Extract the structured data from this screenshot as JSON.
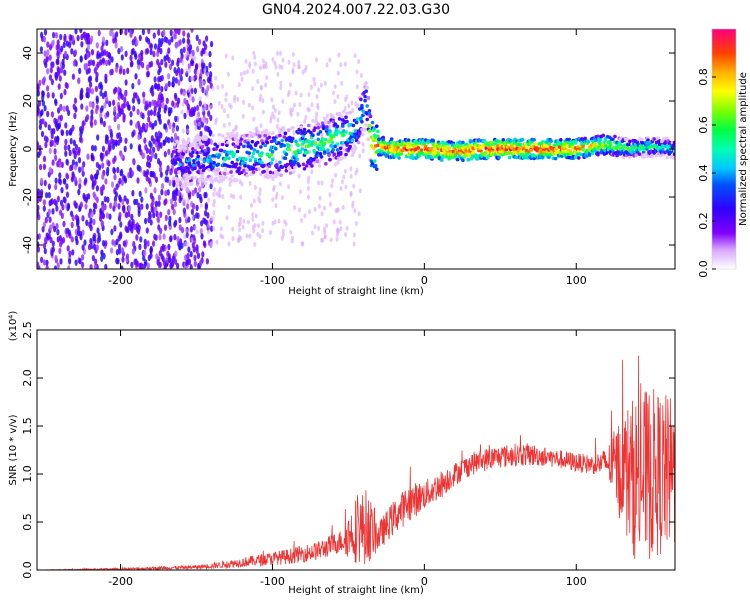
{
  "figure": {
    "title": "GN04.2024.007.22.03.G30"
  },
  "chart_data": [
    {
      "type": "heatmap",
      "name": "spectrogram",
      "xlabel": "Height of straight line (km)",
      "ylabel": "Frequency (Hz)",
      "xlim": [
        -255,
        165
      ],
      "ylim": [
        -50,
        50
      ],
      "xticks": [
        -200,
        -100,
        0,
        100
      ],
      "yticks": [
        -40,
        -20,
        0,
        20,
        40
      ],
      "colorbar": {
        "label": "Normalized spectral amplitude",
        "ticks": [
          "0.0",
          "0.2",
          "0.4",
          "0.6",
          "0.8"
        ],
        "range": [
          0,
          1
        ],
        "colors": [
          "#ffffff",
          "#d9a6ff",
          "#8000ff",
          "#3000ff",
          "#0050ff",
          "#00c8ff",
          "#00ffb0",
          "#00ff40",
          "#80ff00",
          "#ffff00",
          "#ffb000",
          "#ff4000",
          "#ff0040",
          "#ff0080"
        ]
      },
      "grid": false,
      "ridge": [
        {
          "x": -160,
          "freq": -6,
          "amp": 0.35
        },
        {
          "x": -140,
          "freq": -4,
          "amp": 0.45
        },
        {
          "x": -120,
          "freq": -3,
          "amp": 0.5
        },
        {
          "x": -100,
          "freq": -2,
          "amp": 0.55
        },
        {
          "x": -80,
          "freq": 1,
          "amp": 0.6
        },
        {
          "x": -60,
          "freq": 4,
          "amp": 0.6
        },
        {
          "x": -45,
          "freq": 8,
          "amp": 0.55
        },
        {
          "x": -38,
          "freq": 20,
          "amp": 0.5
        },
        {
          "x": -35,
          "freq": 2,
          "amp": 0.8
        },
        {
          "x": -20,
          "freq": 0,
          "amp": 0.92
        },
        {
          "x": 0,
          "freq": 0,
          "amp": 0.95
        },
        {
          "x": 20,
          "freq": -1,
          "amp": 0.9
        },
        {
          "x": 40,
          "freq": 0,
          "amp": 0.92
        },
        {
          "x": 60,
          "freq": 0,
          "amp": 0.95
        },
        {
          "x": 80,
          "freq": 0,
          "amp": 0.92
        },
        {
          "x": 100,
          "freq": 0,
          "amp": 0.88
        },
        {
          "x": 120,
          "freq": 2,
          "amp": 0.75
        },
        {
          "x": 135,
          "freq": 0,
          "amp": 0.6
        },
        {
          "x": 150,
          "freq": 1,
          "amp": 0.55
        },
        {
          "x": 165,
          "freq": 0,
          "amp": 0.5
        }
      ]
    },
    {
      "type": "line",
      "name": "snr",
      "xlabel": "Height of straight line (km)",
      "ylabel": "SNR (10 * v/v)",
      "y_multiplier": "(x10⁴)",
      "xlim": [
        -255,
        165
      ],
      "ylim": [
        0,
        2.5
      ],
      "xticks": [
        -200,
        -100,
        0,
        100
      ],
      "yticks": [
        "0.0",
        "0.5",
        "1.0",
        "1.5",
        "2.0",
        "2.5"
      ],
      "line_color": "#ee3333",
      "grid": false,
      "series": [
        {
          "values_note": "SNR in units of 10^4",
          "x": [
            -255,
            -200,
            -150,
            -130,
            -110,
            -90,
            -70,
            -55,
            -45,
            -38,
            -30,
            -20,
            -10,
            0,
            10,
            20,
            30,
            40,
            50,
            60,
            70,
            80,
            90,
            100,
            110,
            120,
            130,
            140,
            150,
            165
          ],
          "mean": [
            0.0,
            0.01,
            0.03,
            0.06,
            0.1,
            0.14,
            0.2,
            0.3,
            0.42,
            0.45,
            0.35,
            0.55,
            0.7,
            0.78,
            0.88,
            1.0,
            1.1,
            1.15,
            1.18,
            1.2,
            1.2,
            1.18,
            1.15,
            1.12,
            1.1,
            1.12,
            1.05,
            0.95,
            1.0,
            1.0
          ],
          "spread": [
            0.0,
            0.01,
            0.02,
            0.04,
            0.06,
            0.08,
            0.1,
            0.12,
            0.35,
            0.4,
            0.15,
            0.18,
            0.2,
            0.15,
            0.15,
            0.12,
            0.12,
            0.12,
            0.12,
            0.12,
            0.12,
            0.1,
            0.1,
            0.1,
            0.1,
            0.15,
            0.6,
            0.9,
            0.9,
            0.8
          ]
        }
      ]
    }
  ]
}
